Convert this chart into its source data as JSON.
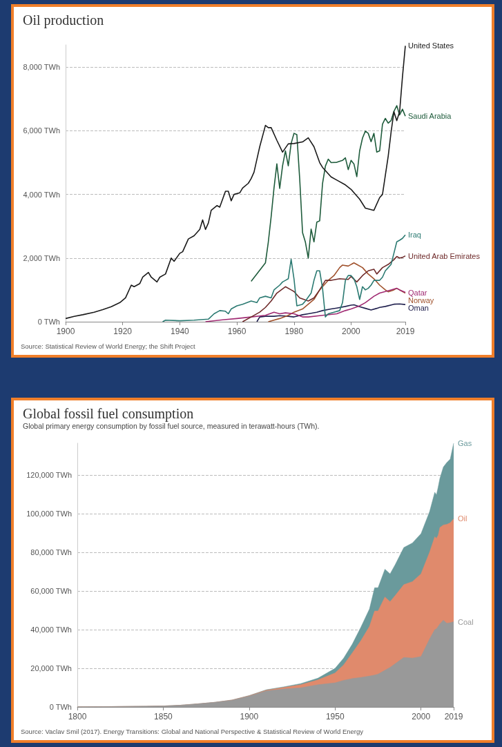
{
  "chart_data": [
    {
      "type": "line",
      "title": "Oil production",
      "grid": "y",
      "legend": false,
      "marker": "none",
      "line_style": "solid",
      "xlim": [
        1900,
        2019
      ],
      "xticks": [
        1900,
        1920,
        1940,
        1960,
        1980,
        2000,
        2019
      ],
      "ylim": [
        0,
        8700
      ],
      "yticks": [
        {
          "value": 0,
          "label": "0 TWh"
        },
        {
          "value": 2000,
          "label": "2,000 TWh"
        },
        {
          "value": 4000,
          "label": "4,000 TWh"
        },
        {
          "value": 6000,
          "label": "6,000 TWh"
        },
        {
          "value": 8000,
          "label": "8,000 TWh"
        }
      ],
      "annotations": [
        "Source: Statistical Review of World Energy; the Shift Project"
      ],
      "series": [
        {
          "name": "United States",
          "color": "#1a1a1a",
          "x": [
            1900,
            1903,
            1906,
            1910,
            1913,
            1916,
            1919,
            1921,
            1923,
            1924,
            1926,
            1927,
            1929,
            1930,
            1932,
            1933,
            1935,
            1937,
            1938,
            1940,
            1941,
            1943,
            1945,
            1947,
            1948,
            1949,
            1950,
            1951,
            1953,
            1954,
            1956,
            1957,
            1958,
            1959,
            1961,
            1962,
            1964,
            1965,
            1966,
            1967,
            1968,
            1970,
            1971,
            1972,
            1974,
            1976,
            1978,
            1980,
            1983,
            1985,
            1987,
            1989,
            1990,
            1993,
            1995,
            1998,
            2000,
            2003,
            2005,
            2008,
            2010,
            2011,
            2012,
            2013,
            2014,
            2015,
            2016,
            2017,
            2018,
            2019
          ],
          "values": [
            100,
            170,
            220,
            300,
            380,
            470,
            600,
            750,
            1150,
            1100,
            1200,
            1400,
            1550,
            1400,
            1250,
            1400,
            1500,
            2000,
            1900,
            2150,
            2200,
            2600,
            2700,
            2900,
            3200,
            2900,
            3100,
            3500,
            3650,
            3600,
            4100,
            4100,
            3800,
            4000,
            4050,
            4200,
            4350,
            4500,
            4700,
            5100,
            5500,
            6170,
            6100,
            6100,
            5700,
            5330,
            5590,
            5600,
            5650,
            5780,
            5500,
            5000,
            4850,
            4550,
            4450,
            4300,
            4160,
            3850,
            3570,
            3500,
            3900,
            4000,
            4600,
            5200,
            5950,
            6600,
            6320,
            6600,
            7700,
            8670
          ]
        },
        {
          "name": "Saudi Arabia",
          "color": "#1e5b3b",
          "x": [
            1965,
            1967,
            1970,
            1971,
            1972,
            1973,
            1974,
            1975,
            1976,
            1977,
            1978,
            1979,
            1980,
            1981,
            1982,
            1983,
            1984,
            1985,
            1986,
            1987,
            1988,
            1989,
            1990,
            1991,
            1992,
            1993,
            1995,
            1997,
            1998,
            1999,
            2000,
            2001,
            2002,
            2003,
            2004,
            2005,
            2006,
            2007,
            2008,
            2009,
            2010,
            2011,
            2012,
            2013,
            2014,
            2015,
            2016,
            2017,
            2018,
            2019
          ],
          "values": [
            1270,
            1500,
            1850,
            2500,
            3300,
            4200,
            4960,
            4190,
            4900,
            5370,
            4900,
            5600,
            5920,
            5880,
            4490,
            2800,
            2500,
            2000,
            2910,
            2510,
            3130,
            3170,
            4340,
            4890,
            5110,
            5000,
            5010,
            5070,
            5150,
            4780,
            5070,
            4960,
            4560,
            5370,
            5770,
            5990,
            5920,
            5660,
            5920,
            5330,
            5370,
            6210,
            6390,
            6240,
            6320,
            6610,
            6790,
            6500,
            6680,
            6460
          ]
        },
        {
          "name": "Iraq",
          "color": "#2b7a72",
          "x": [
            1934,
            1935,
            1940,
            1945,
            1950,
            1952,
            1954,
            1956,
            1957,
            1958,
            1960,
            1962,
            1965,
            1967,
            1968,
            1970,
            1972,
            1973,
            1975,
            1976,
            1977,
            1978,
            1979,
            1980,
            1981,
            1983,
            1984,
            1986,
            1987,
            1988,
            1989,
            1990,
            1991,
            1992,
            1994,
            1996,
            1997,
            1998,
            1999,
            2000,
            2001,
            2002,
            2003,
            2004,
            2005,
            2006,
            2007,
            2008,
            2010,
            2011,
            2012,
            2013,
            2014,
            2015,
            2016,
            2017,
            2018,
            2019
          ],
          "values": [
            0,
            50,
            30,
            50,
            80,
            250,
            350,
            330,
            250,
            400,
            500,
            550,
            650,
            600,
            750,
            800,
            750,
            1000,
            1150,
            1250,
            1300,
            1350,
            1960,
            1350,
            500,
            550,
            650,
            900,
            1300,
            1600,
            1600,
            1050,
            150,
            250,
            300,
            350,
            600,
            1300,
            1450,
            1450,
            1350,
            1100,
            700,
            1100,
            1000,
            1050,
            1150,
            1300,
            1300,
            1400,
            1600,
            1700,
            1800,
            2150,
            2510,
            2560,
            2620,
            2730
          ]
        },
        {
          "name": "United Arab Emirates",
          "color": "#6e2a2a",
          "x": [
            1962,
            1965,
            1968,
            1970,
            1972,
            1974,
            1977,
            1979,
            1980,
            1982,
            1985,
            1987,
            1989,
            1991,
            1993,
            1996,
            1999,
            2000,
            2002,
            2004,
            2006,
            2008,
            2009,
            2011,
            2013,
            2015,
            2016,
            2017,
            2018,
            2019
          ],
          "values": [
            0,
            150,
            300,
            450,
            650,
            900,
            1100,
            1000,
            950,
            750,
            650,
            750,
            1000,
            1300,
            1300,
            1350,
            1330,
            1420,
            1250,
            1450,
            1600,
            1650,
            1500,
            1700,
            1800,
            1950,
            2050,
            2000,
            2020,
            2070
          ]
        },
        {
          "name": "Qatar",
          "color": "#a02a72",
          "x": [
            1949,
            1955,
            1960,
            1965,
            1970,
            1973,
            1975,
            1977,
            1980,
            1983,
            1985,
            1990,
            1995,
            1998,
            2000,
            2003,
            2005,
            2008,
            2010,
            2012,
            2014,
            2016,
            2017,
            2019
          ],
          "values": [
            0,
            60,
            100,
            150,
            200,
            300,
            250,
            280,
            250,
            150,
            150,
            200,
            250,
            350,
            400,
            500,
            600,
            800,
            900,
            950,
            1000,
            1050,
            1000,
            920
          ]
        },
        {
          "name": "Norway",
          "color": "#a0522d",
          "x": [
            1971,
            1975,
            1978,
            1980,
            1983,
            1985,
            1987,
            1989,
            1990,
            1992,
            1994,
            1996,
            1997,
            1999,
            2001,
            2002,
            2004,
            2006,
            2008,
            2010,
            2012,
            2013,
            2015,
            2016,
            2018,
            2019
          ],
          "values": [
            0,
            100,
            200,
            300,
            400,
            550,
            700,
            1000,
            1100,
            1300,
            1450,
            1700,
            1780,
            1750,
            1850,
            1800,
            1700,
            1500,
            1350,
            1150,
            1000,
            940,
            1000,
            1050,
            950,
            900
          ]
        },
        {
          "name": "Oman",
          "color": "#20204e",
          "x": [
            1967,
            1968,
            1970,
            1973,
            1975,
            1978,
            1980,
            1983,
            1985,
            1988,
            1990,
            1993,
            1995,
            1998,
            2000,
            2001,
            2003,
            2005,
            2007,
            2009,
            2010,
            2012,
            2015,
            2017,
            2019
          ],
          "values": [
            0,
            150,
            170,
            170,
            190,
            170,
            150,
            220,
            250,
            300,
            350,
            400,
            430,
            480,
            520,
            530,
            470,
            420,
            370,
            420,
            450,
            480,
            550,
            560,
            540
          ]
        }
      ]
    },
    {
      "type": "area",
      "title": "Global fossil fuel consumption",
      "subtitle": "Global primary energy consumption by fossil fuel source, measured in terawatt-hours (TWh).",
      "stacked": true,
      "grid": "y",
      "legend": false,
      "xlim": [
        1800,
        2019
      ],
      "xticks": [
        1800,
        1850,
        1900,
        1950,
        2000,
        2019
      ],
      "ylim": [
        0,
        136500
      ],
      "yticks": [
        {
          "value": 0,
          "label": "0 TWh"
        },
        {
          "value": 20000,
          "label": "20,000 TWh"
        },
        {
          "value": 40000,
          "label": "40,000 TWh"
        },
        {
          "value": 60000,
          "label": "60,000 TWh"
        },
        {
          "value": 80000,
          "label": "80,000 TWh"
        },
        {
          "value": 100000,
          "label": "100,000 TWh"
        },
        {
          "value": 120000,
          "label": "120,000 TWh"
        }
      ],
      "annotations": [
        "Source: Vaclav Smil (2017). Energy Transitions: Global and National Perspective & Statistical Review of World Energy"
      ],
      "x": [
        1800,
        1820,
        1840,
        1850,
        1860,
        1870,
        1880,
        1890,
        1900,
        1910,
        1920,
        1930,
        1940,
        1950,
        1955,
        1960,
        1965,
        1970,
        1973,
        1975,
        1979,
        1982,
        1985,
        1990,
        1995,
        2000,
        2005,
        2008,
        2009,
        2010,
        2011,
        2013,
        2015,
        2017,
        2019
      ],
      "series": [
        {
          "name": "Coal",
          "color": "#999999",
          "values": [
            100,
            200,
            400,
            500,
            900,
            1600,
            2400,
            3500,
            5600,
            8300,
            9300,
            9900,
            11500,
            12500,
            13800,
            14700,
            15300,
            16000,
            16500,
            17000,
            19000,
            20500,
            22400,
            25600,
            25300,
            26100,
            35200,
            40000,
            40500,
            41700,
            43000,
            44900,
            43300,
            43600,
            44100
          ]
        },
        {
          "name": "Oil",
          "color": "#e08a6c",
          "values": [
            0,
            0,
            0,
            0,
            0,
            0,
            0,
            100,
            200,
            400,
            800,
            1600,
            2500,
            5100,
            8000,
            13300,
            19000,
            25700,
            33200,
            32700,
            37900,
            34000,
            35300,
            37700,
            39600,
            42800,
            44900,
            48100,
            46800,
            47200,
            49900,
            49300,
            51200,
            51700,
            53300
          ]
        },
        {
          "name": "Gas",
          "color": "#6a9a9c",
          "values": [
            0,
            0,
            0,
            0,
            0,
            0,
            0,
            0,
            100,
            200,
            300,
            600,
            900,
            2400,
            3500,
            4500,
            7000,
            9000,
            12000,
            12000,
            14400,
            14400,
            16000,
            19200,
            20000,
            20800,
            21000,
            23000,
            22500,
            25000,
            25500,
            30000,
            32000,
            33000,
            39100
          ]
        }
      ]
    }
  ]
}
